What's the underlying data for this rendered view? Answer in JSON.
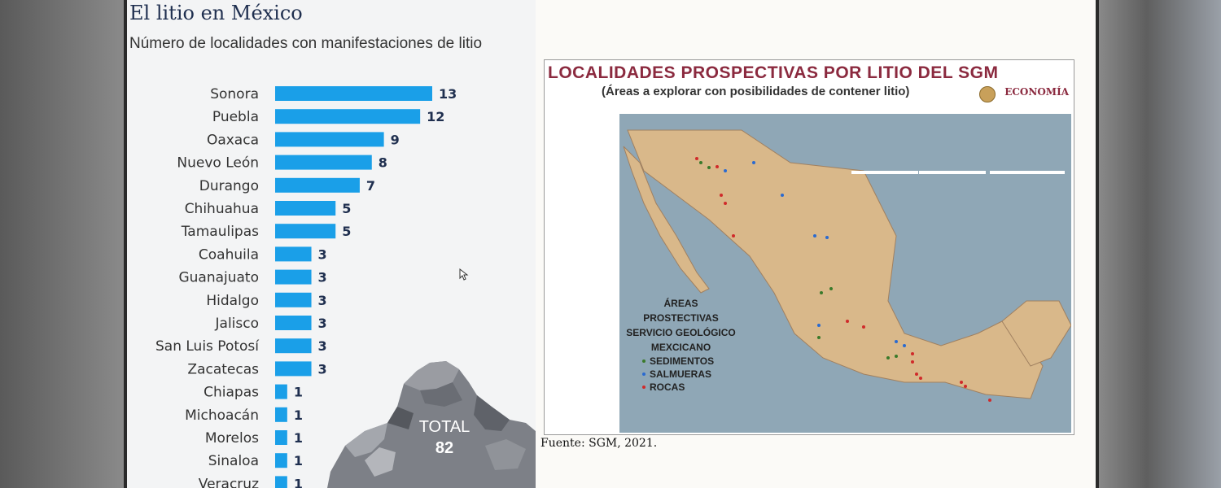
{
  "page": {
    "title": "El litio en México",
    "subtitle": "Número de localidades con manifestaciones de litio"
  },
  "chart_data": {
    "type": "bar",
    "orientation": "horizontal",
    "title": "El litio en México",
    "subtitle": "Número de localidades con manifestaciones de litio",
    "categories": [
      "Sonora",
      "Puebla",
      "Oaxaca",
      "Nuevo León",
      "Durango",
      "Chihuahua",
      "Tamaulipas",
      "Coahuila",
      "Guanajuato",
      "Hidalgo",
      "Jalisco",
      "San Luis Potosí",
      "Zacatecas",
      "Chiapas",
      "Michoacán",
      "Morelos",
      "Sinaloa",
      "Veracruz"
    ],
    "values": [
      13,
      12,
      9,
      8,
      7,
      5,
      5,
      3,
      3,
      3,
      3,
      3,
      3,
      1,
      1,
      1,
      1,
      1
    ],
    "bar_color": "#1a9fe8",
    "xlim": [
      0,
      13
    ],
    "grid": false
  },
  "total": {
    "label": "TOTAL",
    "value": "82"
  },
  "map": {
    "title": "LOCALIDADES PROSPECTIVAS POR LITIO DEL SGM",
    "subtitle": "(Áreas a explorar con posibilidades de contener litio)",
    "logo": "ECONOMÍA",
    "caption_lines": [
      "ÁREAS PROSTECTIVAS",
      "SERVICIO GEOLÓGICO",
      "MEXCICANO"
    ],
    "legend": [
      {
        "label": "SEDIMENTOS",
        "color": "#3a7a2a"
      },
      {
        "label": "SALMUERAS",
        "color": "#2a6ad0"
      },
      {
        "label": "ROCAS",
        "color": "#d02a2a"
      }
    ],
    "land_color": "#d9b88a",
    "sea_color": "#8fa7b6"
  },
  "source": "Fuente: SGM, 2021."
}
